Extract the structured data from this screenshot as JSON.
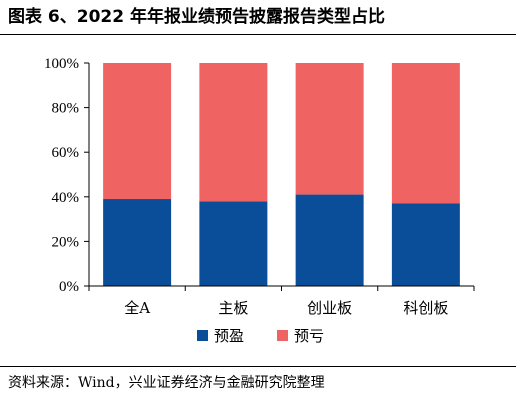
{
  "title": "图表 6、2022 年年报业绩预告披露报告类型占比",
  "source": "资料来源：Wind，兴业证券经济与金融研究院整理",
  "colors": {
    "profit": "#0a4e9a",
    "loss": "#ef6363"
  },
  "chart_data": {
    "type": "bar",
    "stacked": true,
    "categories": [
      "全A",
      "主板",
      "创业板",
      "科创板"
    ],
    "series": [
      {
        "name": "预盈",
        "values": [
          39,
          38,
          41,
          37
        ],
        "color": "#0a4e9a"
      },
      {
        "name": "预亏",
        "values": [
          61,
          62,
          59,
          63
        ],
        "color": "#ef6363"
      }
    ],
    "ylim": [
      0,
      100
    ],
    "yticks": [
      "0%",
      "20%",
      "40%",
      "60%",
      "80%",
      "100%"
    ],
    "grid": false,
    "legend": "bottom"
  }
}
